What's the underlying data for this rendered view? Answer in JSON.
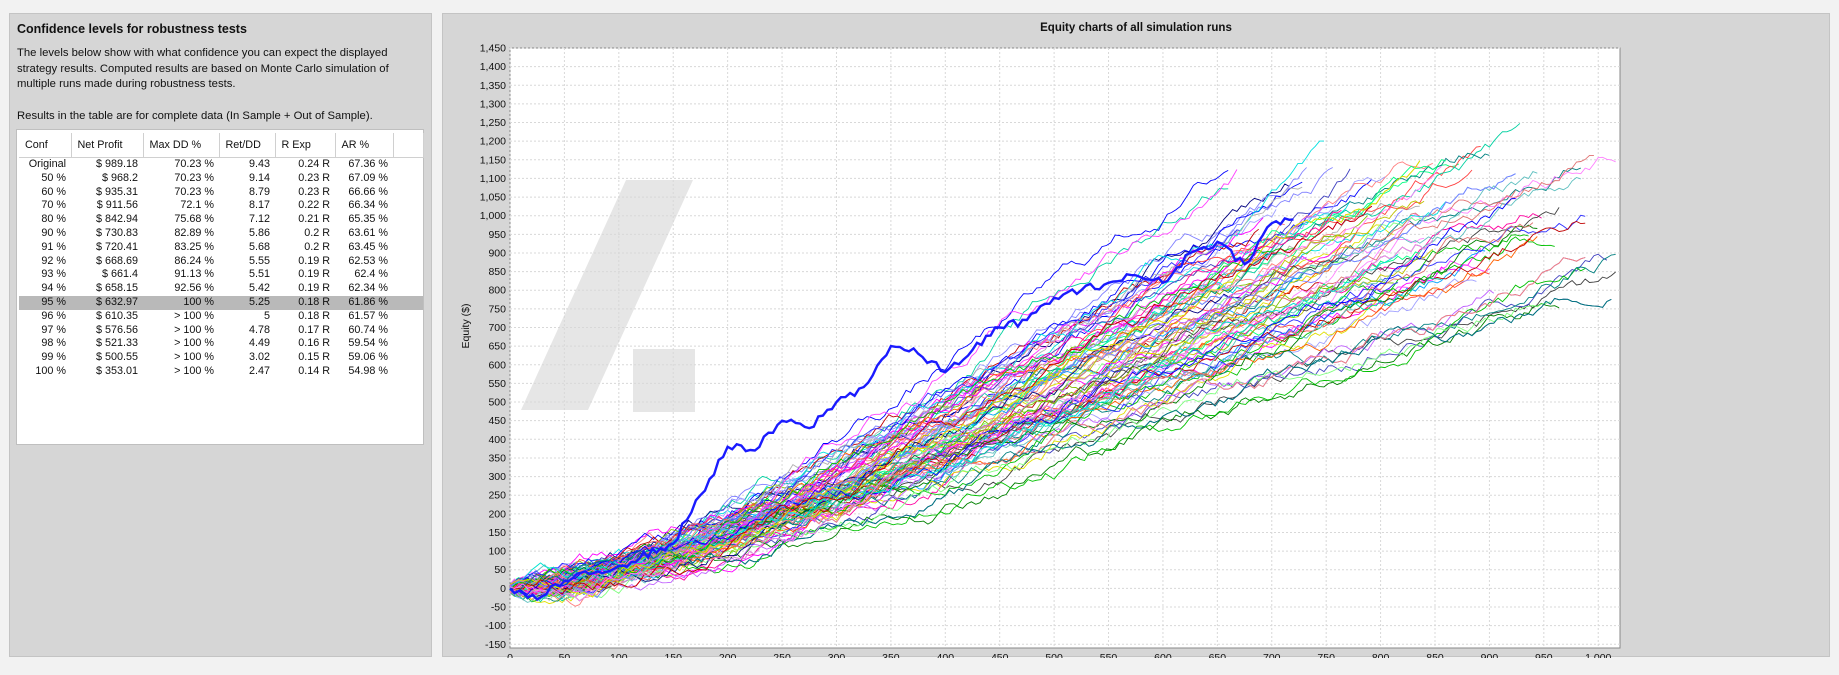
{
  "left_panel": {
    "title": "Confidence levels for robustness tests",
    "description": "The levels below show with what confidence you can expect the displayed strategy results. Computed results are based on Monte Carlo simulation of multiple runs made during robustness tests.",
    "note": "Results in the table are for complete data (In Sample + Out of Sample).",
    "table": {
      "columns": [
        "Conf",
        "Net Profit",
        "Max DD %",
        "Ret/DD",
        "R Exp",
        "AR %"
      ],
      "selected_row": 10,
      "rows": [
        [
          "Original",
          "$ 989.18",
          "70.23 %",
          "9.43",
          "0.24 R",
          "67.36 %"
        ],
        [
          "50 %",
          "$ 968.2",
          "70.23 %",
          "9.14",
          "0.23 R",
          "67.09 %"
        ],
        [
          "60 %",
          "$ 935.31",
          "70.23 %",
          "8.79",
          "0.23 R",
          "66.66 %"
        ],
        [
          "70 %",
          "$ 911.56",
          "72.1 %",
          "8.17",
          "0.22 R",
          "66.34 %"
        ],
        [
          "80 %",
          "$ 842.94",
          "75.68 %",
          "7.12",
          "0.21 R",
          "65.35 %"
        ],
        [
          "90 %",
          "$ 730.83",
          "82.89 %",
          "5.86",
          "0.2 R",
          "63.61 %"
        ],
        [
          "91 %",
          "$ 720.41",
          "83.25 %",
          "5.68",
          "0.2 R",
          "63.45 %"
        ],
        [
          "92 %",
          "$ 668.69",
          "86.24 %",
          "5.55",
          "0.19 R",
          "62.53 %"
        ],
        [
          "93 %",
          "$ 661.4",
          "91.13 %",
          "5.51",
          "0.19 R",
          "62.4 %"
        ],
        [
          "94 %",
          "$ 658.15",
          "92.56 %",
          "5.42",
          "0.19 R",
          "62.34 %"
        ],
        [
          "95 %",
          "$ 632.97",
          "100 %",
          "5.25",
          "0.18 R",
          "61.86 %"
        ],
        [
          "96 %",
          "$ 610.35",
          "> 100 %",
          "5",
          "0.18 R",
          "61.57 %"
        ],
        [
          "97 %",
          "$ 576.56",
          "> 100 %",
          "4.78",
          "0.17 R",
          "60.74 %"
        ],
        [
          "98 %",
          "$ 521.33",
          "> 100 %",
          "4.49",
          "0.16 R",
          "59.54 %"
        ],
        [
          "99 %",
          "$ 500.55",
          "> 100 %",
          "3.02",
          "0.15 R",
          "59.06 %"
        ],
        [
          "100 %",
          "$ 353.01",
          "> 100 %",
          "2.47",
          "0.14 R",
          "54.98 %"
        ]
      ]
    }
  },
  "chart_panel": {
    "title": "Equity charts of all simulation runs"
  },
  "chart_data": {
    "type": "line",
    "title": "Equity charts of all simulation runs",
    "xlabel": "",
    "ylabel": "Equity ($)",
    "xlim": [
      0,
      1020
    ],
    "ylim": [
      -160,
      1450
    ],
    "x_ticks": [
      0,
      50,
      100,
      150,
      200,
      250,
      300,
      350,
      400,
      450,
      500,
      550,
      600,
      650,
      700,
      750,
      800,
      850,
      900,
      950,
      1000
    ],
    "x_tick_labels": [
      "0",
      "50",
      "100",
      "150",
      "200",
      "250",
      "300",
      "350",
      "400",
      "450",
      "500",
      "550",
      "600",
      "650",
      "700",
      "750",
      "800",
      "850",
      "900",
      "950",
      "1,000"
    ],
    "y_ticks": [
      -150,
      -100,
      -50,
      0,
      50,
      100,
      150,
      200,
      250,
      300,
      350,
      400,
      450,
      500,
      550,
      600,
      650,
      700,
      750,
      800,
      850,
      900,
      950,
      1000,
      1050,
      1100,
      1150,
      1200,
      1250,
      1300,
      1350,
      1400,
      1450
    ],
    "y_tick_labels": [
      "-150",
      "-100",
      "-50",
      "0",
      "50",
      "100",
      "150",
      "200",
      "250",
      "300",
      "350",
      "400",
      "450",
      "500",
      "550",
      "600",
      "650",
      "700",
      "750",
      "800",
      "850",
      "900",
      "950",
      "1,000",
      "1,050",
      "1,100",
      "1,150",
      "1,200",
      "1,250",
      "1,300",
      "1,350",
      "1,400",
      "1,450"
    ],
    "grid": true,
    "legend": "none",
    "simulation_runs": {
      "count": 100,
      "end_x_range": [
        650,
        1020
      ],
      "end_y_range": [
        850,
        1380
      ]
    },
    "original_series": {
      "color": "#1a1aff",
      "x": [
        0,
        25,
        50,
        100,
        150,
        175,
        200,
        225,
        250,
        275,
        300,
        325,
        350,
        375,
        400,
        425,
        450,
        475,
        500,
        525,
        550,
        575,
        600,
        625,
        650,
        675,
        700,
        720
      ],
      "y": [
        0,
        -30,
        20,
        60,
        120,
        250,
        380,
        370,
        450,
        430,
        500,
        540,
        650,
        630,
        580,
        640,
        700,
        720,
        780,
        800,
        820,
        840,
        820,
        900,
        930,
        870,
        980,
        990
      ]
    }
  }
}
